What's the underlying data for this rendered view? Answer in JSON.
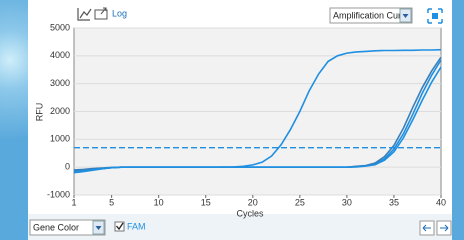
{
  "toolbar": {
    "log": "Log",
    "view": "Amplification Curve"
  },
  "footer": {
    "color_mode": "Gene Color",
    "channel": "FAM"
  },
  "chart_data": {
    "type": "line",
    "x_label": "Cycles",
    "y_label": "RFU",
    "x": [
      1,
      2,
      3,
      4,
      5,
      6,
      7,
      8,
      9,
      10,
      11,
      12,
      13,
      14,
      15,
      16,
      17,
      18,
      19,
      20,
      21,
      22,
      23,
      24,
      25,
      26,
      27,
      28,
      29,
      30,
      31,
      32,
      33,
      34,
      35,
      36,
      37,
      38,
      39,
      40
    ],
    "series": [
      {
        "color": "#1e8fe1",
        "values": [
          -150,
          -120,
          -80,
          -50,
          -20,
          0,
          0,
          0,
          0,
          0,
          0,
          0,
          0,
          0,
          0,
          0,
          5,
          10,
          30,
          80,
          180,
          400,
          800,
          1350,
          2000,
          2750,
          3350,
          3800,
          4000,
          4100,
          4140,
          4160,
          4180,
          4190,
          4190,
          4200,
          4200,
          4210,
          4210,
          4220
        ]
      },
      {
        "color": "#1e8fe1",
        "values": [
          -200,
          -160,
          -110,
          -60,
          -20,
          0,
          0,
          0,
          0,
          0,
          0,
          0,
          0,
          0,
          0,
          0,
          0,
          0,
          0,
          0,
          0,
          0,
          0,
          0,
          0,
          0,
          0,
          0,
          0,
          0,
          20,
          50,
          120,
          300,
          650,
          1200,
          1900,
          2650,
          3300,
          3850
        ]
      },
      {
        "color": "#3a7fb8",
        "values": [
          -100,
          -80,
          -50,
          -30,
          -10,
          0,
          0,
          0,
          0,
          0,
          0,
          0,
          0,
          0,
          0,
          0,
          0,
          0,
          0,
          0,
          0,
          0,
          0,
          0,
          0,
          0,
          0,
          0,
          0,
          0,
          30,
          60,
          150,
          380,
          780,
          1400,
          2150,
          2850,
          3450,
          3950
        ]
      },
      {
        "color": "#1e8fe1",
        "values": [
          -180,
          -140,
          -90,
          -50,
          -20,
          0,
          0,
          0,
          0,
          0,
          0,
          0,
          0,
          0,
          0,
          0,
          0,
          0,
          0,
          0,
          0,
          0,
          0,
          0,
          0,
          0,
          0,
          0,
          0,
          0,
          10,
          40,
          90,
          250,
          550,
          1050,
          1700,
          2400,
          3050,
          3600
        ]
      }
    ],
    "threshold": 700,
    "threshold_color": "#1e8fe1",
    "xlim": [
      1,
      40
    ],
    "xticks": [
      1,
      5,
      10,
      15,
      20,
      25,
      30,
      35,
      40
    ],
    "ylim": [
      -1000,
      5000
    ],
    "yticks": [
      -1000,
      0,
      1000,
      2000,
      3000,
      4000,
      5000
    ],
    "grid": true
  }
}
